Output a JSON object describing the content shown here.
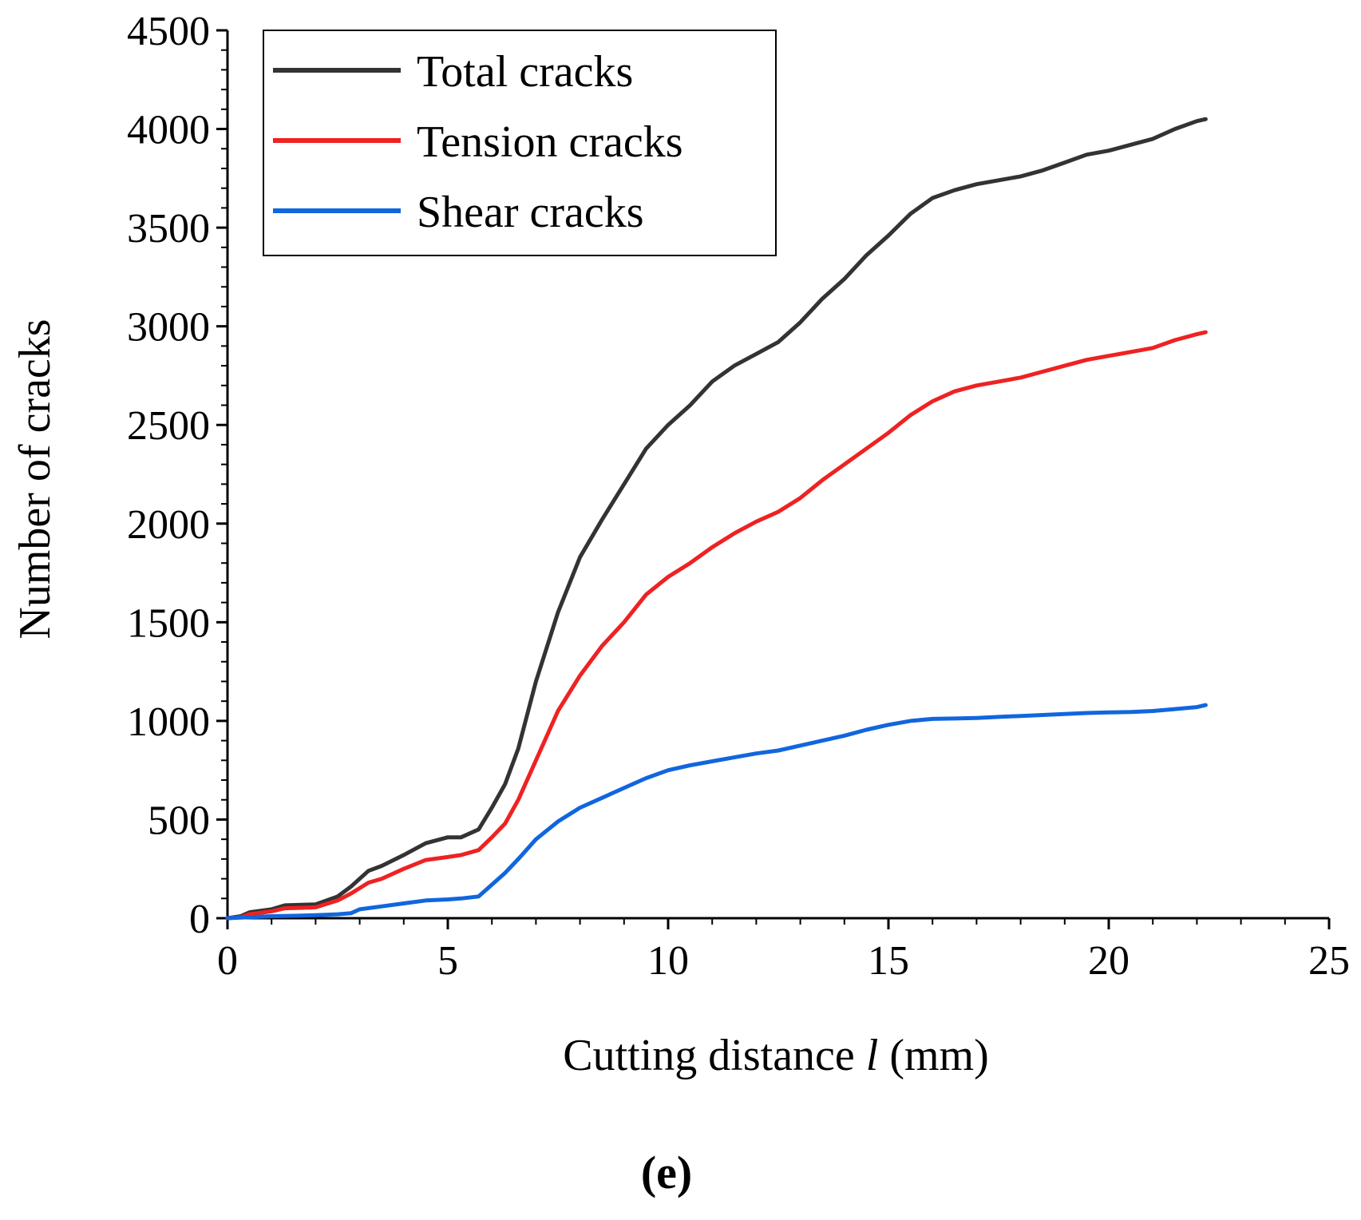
{
  "chart_data": {
    "type": "line",
    "title": "",
    "xlabel": "Cutting distance",
    "xlabel_var": "l",
    "xlabel_unit": "(mm)",
    "ylabel": "Number of cracks",
    "xlim": [
      0,
      25
    ],
    "ylim": [
      0,
      4500
    ],
    "xticks": [
      0,
      5,
      10,
      15,
      20,
      25
    ],
    "yticks": [
      0,
      500,
      1000,
      1500,
      2000,
      2500,
      3000,
      3500,
      4000,
      4500
    ],
    "grid": false,
    "legend_position": "top-left",
    "panel_label": "(e)",
    "series": [
      {
        "name": "Total cracks",
        "color": "#333333",
        "x": [
          0,
          0.3,
          0.5,
          1,
          1.3,
          2,
          2.5,
          2.8,
          3.2,
          3.5,
          4,
          4.5,
          5,
          5.3,
          5.7,
          6,
          6.3,
          6.6,
          7,
          7.5,
          8,
          8.5,
          9,
          9.5,
          10,
          10.5,
          11,
          11.5,
          12,
          12.5,
          13,
          13.5,
          14,
          14.5,
          15,
          15.5,
          16,
          16.5,
          17,
          17.5,
          18,
          18.5,
          19,
          19.5,
          20,
          20.5,
          21,
          21.5,
          22,
          22.2
        ],
        "values": [
          0,
          10,
          30,
          45,
          65,
          70,
          110,
          160,
          240,
          265,
          320,
          380,
          410,
          410,
          450,
          560,
          680,
          860,
          1200,
          1550,
          1830,
          2020,
          2200,
          2380,
          2500,
          2600,
          2720,
          2800,
          2860,
          2920,
          3020,
          3140,
          3240,
          3360,
          3460,
          3570,
          3650,
          3690,
          3720,
          3740,
          3760,
          3790,
          3830,
          3870,
          3890,
          3920,
          3950,
          4000,
          4040,
          4050
        ]
      },
      {
        "name": "Tension cracks",
        "color": "#ee2222",
        "x": [
          0,
          0.3,
          0.5,
          1,
          1.3,
          2,
          2.5,
          2.8,
          3.2,
          3.5,
          4,
          4.5,
          5,
          5.3,
          5.7,
          6,
          6.3,
          6.6,
          7,
          7.5,
          8,
          8.5,
          9,
          9.5,
          10,
          10.5,
          11,
          11.5,
          12,
          12.5,
          13,
          13.5,
          14,
          14.5,
          15,
          15.5,
          16,
          16.5,
          17,
          17.5,
          18,
          18.5,
          19,
          19.5,
          20,
          20.5,
          21,
          21.5,
          22,
          22.2
        ],
        "values": [
          0,
          5,
          20,
          35,
          50,
          55,
          90,
          125,
          180,
          200,
          250,
          295,
          310,
          320,
          345,
          410,
          480,
          600,
          800,
          1050,
          1230,
          1380,
          1500,
          1640,
          1730,
          1800,
          1880,
          1950,
          2010,
          2060,
          2130,
          2220,
          2300,
          2380,
          2460,
          2550,
          2620,
          2670,
          2700,
          2720,
          2740,
          2770,
          2800,
          2830,
          2850,
          2870,
          2890,
          2930,
          2960,
          2970
        ]
      },
      {
        "name": "Shear cracks",
        "color": "#1166dd",
        "x": [
          0,
          0.5,
          1,
          1.5,
          2,
          2.5,
          2.8,
          3,
          3.5,
          4,
          4.5,
          5,
          5.3,
          5.7,
          6,
          6.3,
          6.6,
          7,
          7.5,
          8,
          8.5,
          9,
          9.5,
          10,
          10.5,
          11,
          11.5,
          12,
          12.5,
          13,
          13.5,
          14,
          14.5,
          15,
          15.5,
          16,
          16.5,
          17,
          17.5,
          18,
          18.5,
          19,
          19.5,
          20,
          20.5,
          21,
          21.5,
          22,
          22.2
        ],
        "values": [
          0,
          5,
          10,
          12,
          15,
          20,
          25,
          45,
          60,
          75,
          90,
          95,
          100,
          110,
          170,
          230,
          300,
          400,
          490,
          560,
          610,
          660,
          710,
          750,
          775,
          795,
          815,
          835,
          850,
          875,
          900,
          925,
          955,
          980,
          1000,
          1010,
          1012,
          1015,
          1020,
          1025,
          1030,
          1035,
          1040,
          1043,
          1045,
          1050,
          1060,
          1070,
          1080
        ]
      }
    ]
  }
}
